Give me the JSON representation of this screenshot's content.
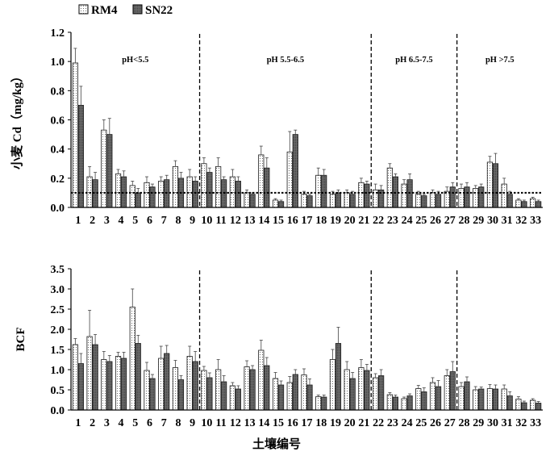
{
  "legend": [
    {
      "name": "RM4",
      "pattern": "dots"
    },
    {
      "name": "SN22",
      "pattern": "dark"
    }
  ],
  "xlabel": "土壤编号",
  "chart_data": [
    {
      "type": "bar",
      "ylabel": "小麦 Cd（mg/kg）",
      "ylim": [
        0,
        1.2
      ],
      "yticks": [
        "0.0",
        "0.2",
        "0.4",
        "0.6",
        "0.8",
        "1.0",
        "1.2"
      ],
      "categories": [
        "1",
        "2",
        "3",
        "4",
        "5",
        "6",
        "7",
        "8",
        "9",
        "10",
        "11",
        "12",
        "13",
        "14",
        "15",
        "16",
        "17",
        "18",
        "19",
        "20",
        "21",
        "22",
        "23",
        "24",
        "25",
        "26",
        "27",
        "28",
        "29",
        "30",
        "31",
        "32",
        "33"
      ],
      "series": [
        {
          "name": "RM4",
          "values": [
            0.99,
            0.21,
            0.53,
            0.23,
            0.15,
            0.17,
            0.18,
            0.28,
            0.21,
            0.3,
            0.28,
            0.21,
            0.1,
            0.36,
            0.05,
            0.38,
            0.09,
            0.22,
            0.09,
            0.1,
            0.17,
            0.12,
            0.27,
            0.16,
            0.09,
            0.1,
            0.11,
            0.13,
            0.13,
            0.31,
            0.16,
            0.05,
            0.06
          ],
          "errors": [
            0.1,
            0.07,
            0.07,
            0.03,
            0.03,
            0.04,
            0.03,
            0.04,
            0.05,
            0.04,
            0.06,
            0.05,
            0.02,
            0.06,
            0.01,
            0.14,
            0.02,
            0.05,
            0.02,
            0.02,
            0.03,
            0.04,
            0.03,
            0.03,
            0.02,
            0.02,
            0.03,
            0.03,
            0.02,
            0.04,
            0.04,
            0.01,
            0.01
          ]
        },
        {
          "name": "SN22",
          "values": [
            0.7,
            0.19,
            0.5,
            0.21,
            0.1,
            0.14,
            0.19,
            0.2,
            0.18,
            0.24,
            0.19,
            0.18,
            0.09,
            0.27,
            0.04,
            0.5,
            0.08,
            0.22,
            0.1,
            0.09,
            0.16,
            0.12,
            0.21,
            0.19,
            0.08,
            0.09,
            0.14,
            0.14,
            0.14,
            0.3,
            0.09,
            0.04,
            0.04
          ],
          "errors": [
            0.13,
            0.05,
            0.11,
            0.04,
            0.03,
            0.02,
            0.03,
            0.04,
            0.03,
            0.03,
            0.02,
            0.03,
            0.01,
            0.07,
            0.01,
            0.03,
            0.01,
            0.04,
            0.02,
            0.02,
            0.02,
            0.03,
            0.02,
            0.04,
            0.01,
            0.02,
            0.03,
            0.03,
            0.02,
            0.07,
            0.02,
            0.01,
            0.01
          ]
        }
      ],
      "threshold": 0.1,
      "regions": [
        {
          "label": "pH<5.5",
          "from": 1,
          "to": 9
        },
        {
          "label": "pH 5.5-6.5",
          "from": 10,
          "to": 21
        },
        {
          "label": "pH 6.5-7.5",
          "from": 22,
          "to": 27
        },
        {
          "label": "pH >7.5",
          "from": 28,
          "to": 33
        }
      ],
      "dividers_after": [
        9,
        21,
        27
      ]
    },
    {
      "type": "bar",
      "ylabel": "BCF",
      "ylim": [
        0,
        3.5
      ],
      "yticks": [
        "0.0",
        "0.5",
        "1.0",
        "1.5",
        "2.0",
        "2.5",
        "3.0",
        "3.5"
      ],
      "categories": [
        "1",
        "2",
        "3",
        "4",
        "5",
        "6",
        "7",
        "8",
        "9",
        "10",
        "11",
        "12",
        "13",
        "14",
        "15",
        "16",
        "17",
        "18",
        "19",
        "20",
        "21",
        "22",
        "23",
        "24",
        "25",
        "26",
        "27",
        "28",
        "29",
        "30",
        "31",
        "32",
        "33"
      ],
      "series": [
        {
          "name": "RM4",
          "values": [
            1.62,
            1.82,
            1.25,
            1.33,
            2.55,
            0.98,
            1.28,
            1.05,
            1.33,
            0.98,
            1.0,
            0.6,
            1.07,
            1.48,
            0.78,
            0.68,
            0.87,
            0.33,
            1.25,
            1.0,
            1.05,
            0.8,
            0.38,
            0.28,
            0.53,
            0.68,
            0.85,
            0.58,
            0.5,
            0.53,
            0.52,
            0.27,
            0.24
          ],
          "errors": [
            0.15,
            0.65,
            0.2,
            0.1,
            0.45,
            0.2,
            0.3,
            0.18,
            0.25,
            0.1,
            0.25,
            0.08,
            0.15,
            0.25,
            0.15,
            0.15,
            0.15,
            0.04,
            0.25,
            0.2,
            0.2,
            0.1,
            0.05,
            0.04,
            0.08,
            0.12,
            0.15,
            0.1,
            0.08,
            0.1,
            0.1,
            0.06,
            0.04
          ]
        },
        {
          "name": "SN22",
          "values": [
            1.15,
            1.62,
            1.2,
            1.28,
            1.65,
            0.78,
            1.4,
            0.75,
            1.2,
            0.8,
            0.7,
            0.52,
            1.0,
            1.1,
            0.62,
            0.88,
            0.62,
            0.32,
            1.65,
            0.78,
            0.98,
            0.85,
            0.32,
            0.35,
            0.45,
            0.58,
            0.95,
            0.7,
            0.52,
            0.52,
            0.35,
            0.18,
            0.17
          ],
          "errors": [
            0.25,
            0.25,
            0.15,
            0.15,
            0.2,
            0.1,
            0.2,
            0.1,
            0.25,
            0.12,
            0.15,
            0.08,
            0.1,
            0.2,
            0.1,
            0.12,
            0.15,
            0.05,
            0.4,
            0.15,
            0.15,
            0.15,
            0.05,
            0.05,
            0.1,
            0.15,
            0.25,
            0.12,
            0.05,
            0.1,
            0.1,
            0.04,
            0.04
          ]
        }
      ],
      "dividers_after": [
        9,
        21,
        27
      ]
    }
  ]
}
